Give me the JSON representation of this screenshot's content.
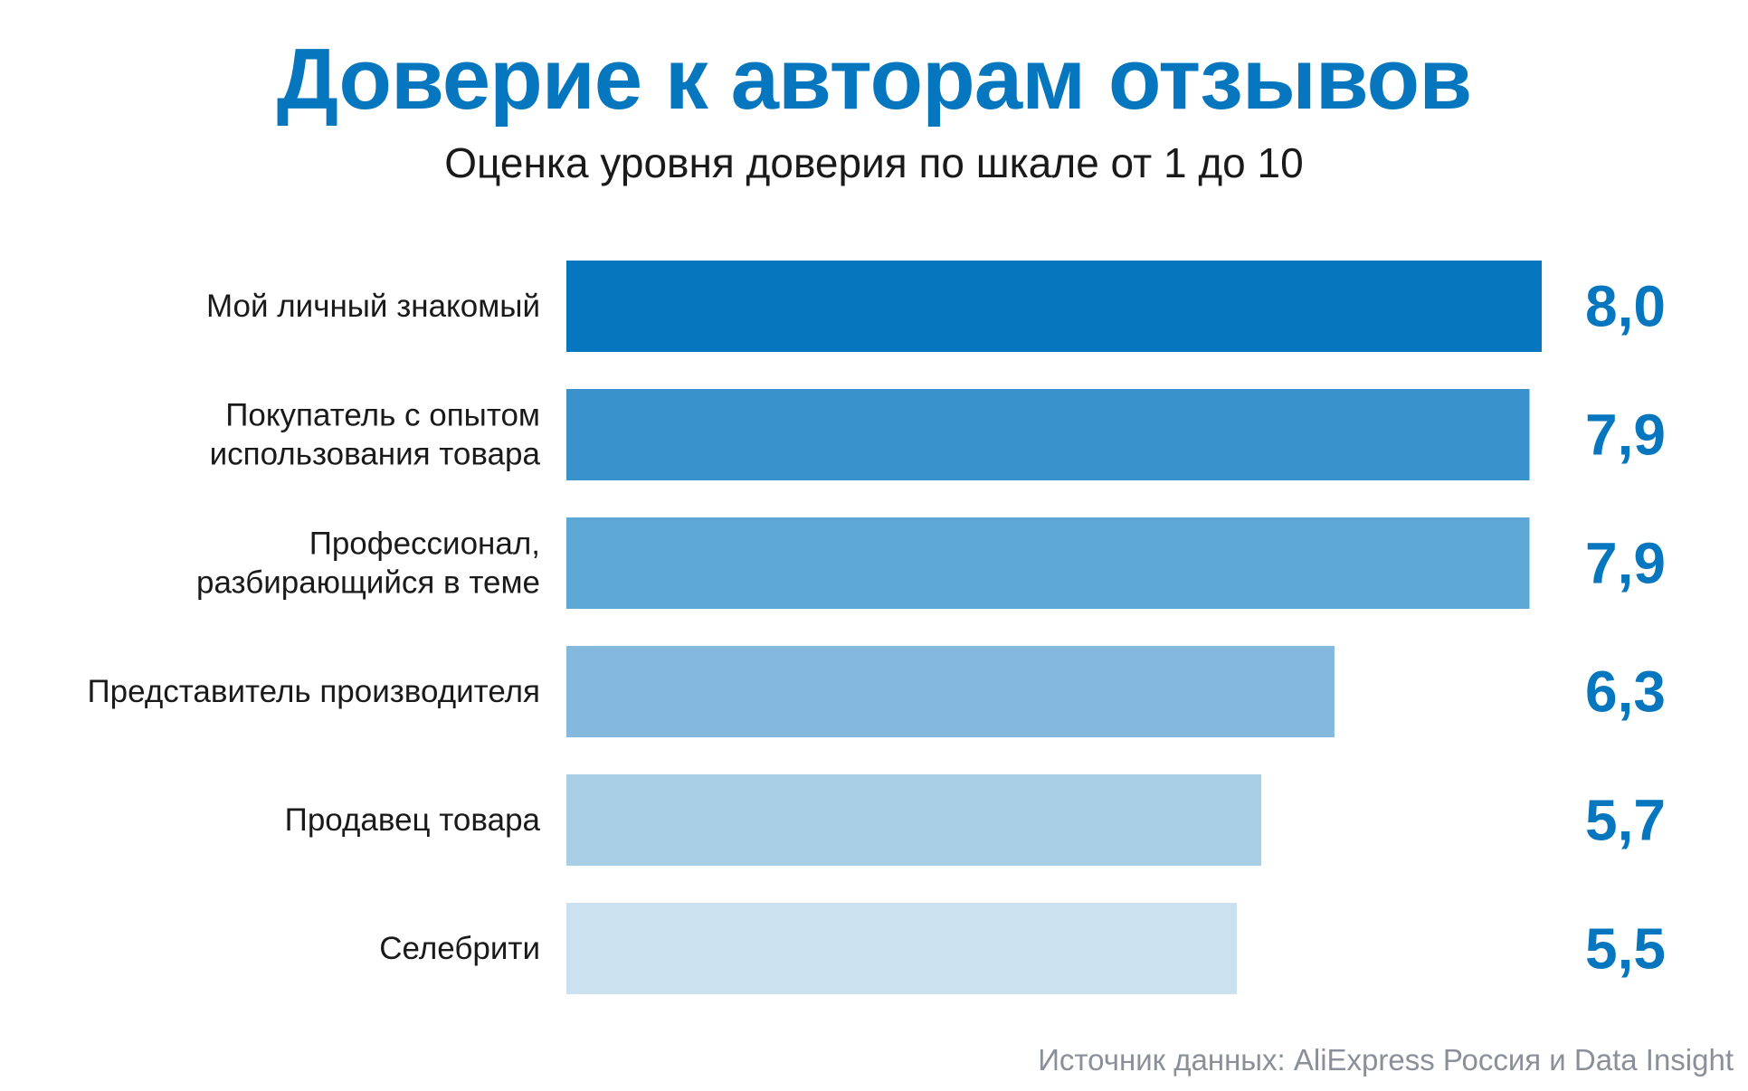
{
  "title": "Доверие к авторам отзывов",
  "subtitle": "Оценка уровня доверия по шкале от 1 до 10",
  "source": "Источник данных: AliExpress Россия и Data Insight",
  "colors": {
    "accent": "#0677bf",
    "bars": [
      "#0677bf",
      "#3a92cc",
      "#5ca7d6",
      "#84b9dd",
      "#a9cfe7",
      "#cce1f0"
    ],
    "category_text": "#1a1a1a",
    "value_text": "#0677bf"
  },
  "chart_data": {
    "type": "bar",
    "orientation": "horizontal",
    "categories": [
      [
        "Мой личный знакомый"
      ],
      [
        "Покупатель с опытом",
        "использования товара"
      ],
      [
        "Профессионал,",
        "разбирающийся в теме"
      ],
      [
        "Представитель производителя"
      ],
      [
        "Продавец товара"
      ],
      [
        "Селебрити"
      ]
    ],
    "values": [
      8.0,
      7.9,
      7.9,
      6.3,
      5.7,
      5.5
    ],
    "value_labels": [
      "8,0",
      "7,9",
      "7,9",
      "6,3",
      "5,7",
      "5,5"
    ],
    "xlim": [
      0,
      8.0
    ],
    "grid": false,
    "legend": "none"
  }
}
